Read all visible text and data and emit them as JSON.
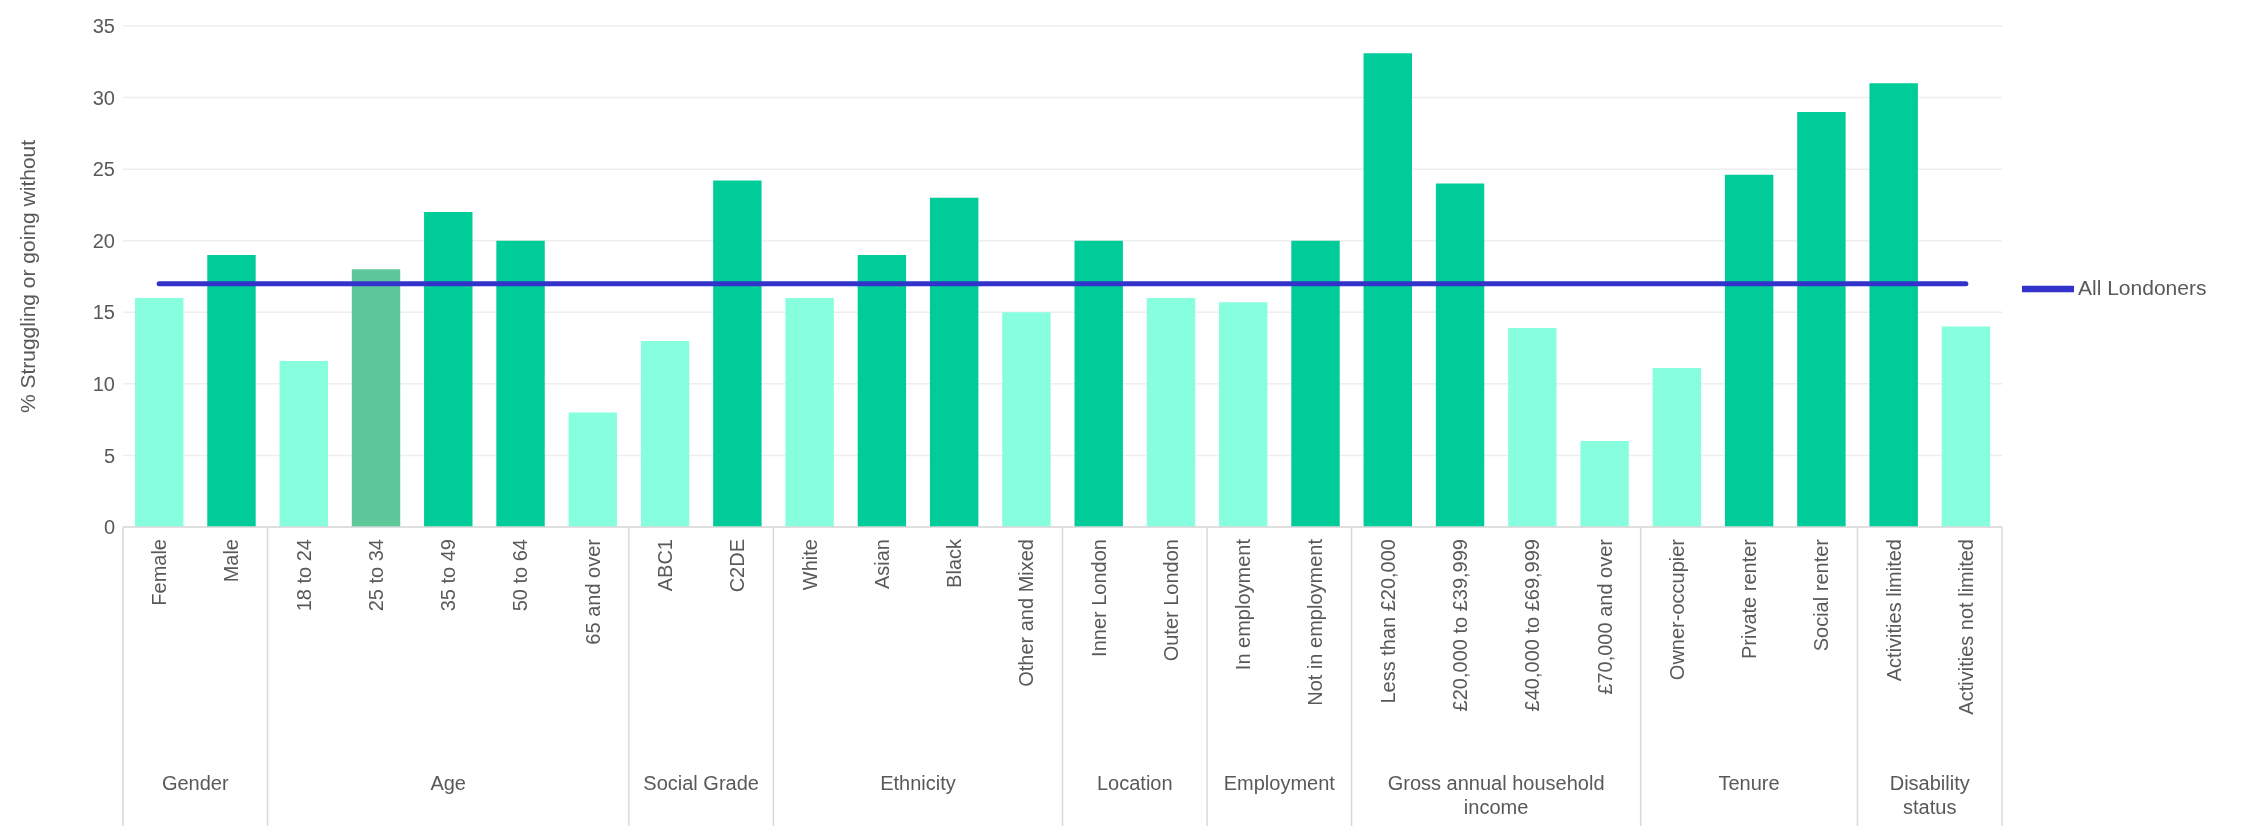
{
  "chart_data": {
    "type": "bar",
    "ylabel": "% Struggling or going without",
    "categories": [
      "Female",
      "Male",
      "18 to 24",
      "25 to 34",
      "35 to 49",
      "50 to 64",
      "65 and over",
      "ABC1",
      "C2DE",
      "White",
      "Asian",
      "Black",
      "Other and Mixed",
      "Inner London",
      "Outer London",
      "In employment",
      "Not in employment",
      "Less than £20,000",
      "£20,000 to £39,999",
      "£40,000 to £69,999",
      "£70,000 and over",
      "Owner-occupier",
      "Private renter",
      "Social renter",
      "Activities limited",
      "Activities not limited"
    ],
    "series": [
      {
        "values": [
          16,
          19,
          11.6,
          18,
          22,
          20,
          8,
          13,
          24.2,
          16,
          19,
          23,
          15,
          20,
          16,
          15.7,
          20,
          33.1,
          24,
          13.9,
          6,
          11.1,
          24.6,
          29,
          31,
          14
        ],
        "colors": [
          "#87ffde",
          "#00cc99",
          "#87ffde",
          "#5ec89b",
          "#00cc99",
          "#00cc99",
          "#87ffde",
          "#87ffde",
          "#00cc99",
          "#87ffde",
          "#00cc99",
          "#00cc99",
          "#87ffde",
          "#00cc99",
          "#87ffde",
          "#87ffde",
          "#00cc99",
          "#00cc99",
          "#00cc99",
          "#87ffde",
          "#87ffde",
          "#87ffde",
          "#00cc99",
          "#00cc99",
          "#00cc99",
          "#87ffde"
        ]
      },
      {
        "type": "line",
        "name": "All Londoners",
        "color": "#3333cc",
        "values": [
          17,
          17,
          17,
          17,
          17,
          17,
          17,
          17,
          17,
          17,
          17,
          17,
          17,
          17,
          17,
          17,
          17,
          17,
          17,
          17,
          17,
          17,
          17,
          17,
          17,
          17
        ]
      }
    ],
    "ylim": [
      0,
      35
    ],
    "yticks": [
      0,
      5,
      10,
      15,
      20,
      25,
      30,
      35
    ],
    "grid": "y",
    "legend": "right",
    "marker": "none",
    "annotations": [
      "Gender",
      "Age",
      "Social Grade",
      "Ethnicity",
      "Location",
      "Employment",
      "Gross annual household income",
      "Tenure",
      "Disability status"
    ]
  }
}
